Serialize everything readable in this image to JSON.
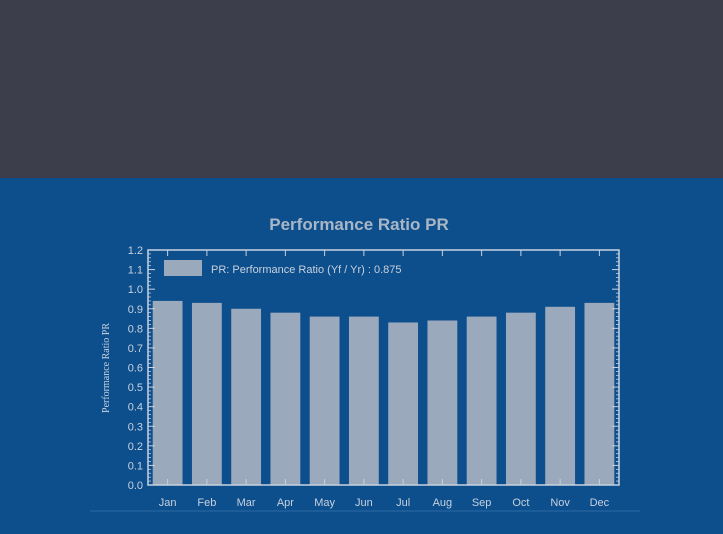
{
  "colors": {
    "top_band": "#3d3e4b",
    "panel": "#0d4e8c",
    "bar": "#9aa9bb",
    "axis": "#c8d2de",
    "title": "#a9b6c6"
  },
  "chart_data": {
    "type": "bar",
    "title": "Performance Ratio PR",
    "xlabel": "",
    "ylabel": "Performance Ratio PR",
    "ylim": [
      0,
      1.2
    ],
    "yticks": [
      "0.0",
      "0.1",
      "0.2",
      "0.3",
      "0.4",
      "0.5",
      "0.6",
      "0.7",
      "0.8",
      "0.9",
      "1.0",
      "1.1",
      "1.2"
    ],
    "categories": [
      "Jan",
      "Feb",
      "Mar",
      "Apr",
      "May",
      "Jun",
      "Jul",
      "Aug",
      "Sep",
      "Oct",
      "Nov",
      "Dec"
    ],
    "series": [
      {
        "name": "PR: Performance Ratio (Yf / Yr) :  0.875",
        "values": [
          0.94,
          0.93,
          0.9,
          0.88,
          0.86,
          0.86,
          0.83,
          0.84,
          0.86,
          0.88,
          0.91,
          0.93
        ]
      }
    ],
    "grid": false,
    "legend": "top-left"
  }
}
